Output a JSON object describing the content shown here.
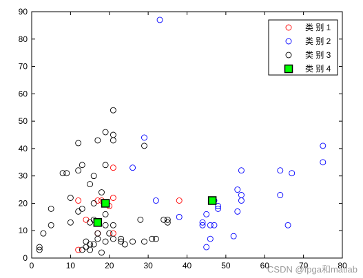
{
  "chart_data": {
    "type": "scatter",
    "title": "",
    "xlabel": "",
    "ylabel": "",
    "xlim": [
      0,
      80
    ],
    "ylim": [
      0,
      90
    ],
    "xticks": [
      0,
      10,
      20,
      30,
      40,
      50,
      60,
      70,
      80
    ],
    "yticks": [
      0,
      10,
      20,
      30,
      40,
      50,
      60,
      70,
      80,
      90
    ],
    "xtick_labels": [
      "0",
      "10",
      "20",
      "30",
      "40",
      "50",
      "60",
      "70",
      "80"
    ],
    "ytick_labels": [
      "0",
      "10",
      "20",
      "30",
      "40",
      "50",
      "60",
      "70",
      "80",
      "90"
    ],
    "grid": false,
    "legend_position": "top-right",
    "series": [
      {
        "name": "类 别 1",
        "color": "#ff0000",
        "marker": "open-circle",
        "points": [
          [
            12,
            21
          ],
          [
            14,
            14
          ],
          [
            12,
            3
          ],
          [
            17,
            21
          ],
          [
            18,
            21
          ],
          [
            21,
            33
          ],
          [
            21,
            22
          ],
          [
            20,
            19
          ],
          [
            21,
            9
          ],
          [
            38,
            21
          ],
          [
            17,
            9
          ]
        ]
      },
      {
        "name": "类 别 2",
        "color": "#0000ff",
        "marker": "open-circle",
        "points": [
          [
            33,
            87
          ],
          [
            29,
            44
          ],
          [
            26,
            33
          ],
          [
            32,
            21
          ],
          [
            38,
            15
          ],
          [
            44,
            13
          ],
          [
            44,
            12
          ],
          [
            45,
            16
          ],
          [
            45,
            4
          ],
          [
            46,
            7
          ],
          [
            46,
            12
          ],
          [
            47,
            12
          ],
          [
            48,
            19
          ],
          [
            48,
            18
          ],
          [
            47,
            21
          ],
          [
            52,
            8
          ],
          [
            53,
            25
          ],
          [
            53,
            17
          ],
          [
            54,
            23
          ],
          [
            54,
            21
          ],
          [
            54,
            32
          ],
          [
            64,
            32
          ],
          [
            64,
            23
          ],
          [
            66,
            12
          ],
          [
            67,
            31
          ],
          [
            75,
            41
          ],
          [
            75,
            35
          ]
        ]
      },
      {
        "name": "类 别 3",
        "color": "#000000",
        "marker": "open-circle",
        "points": [
          [
            21,
            54
          ],
          [
            19,
            46
          ],
          [
            21,
            45
          ],
          [
            21,
            43
          ],
          [
            17,
            43
          ],
          [
            12,
            42
          ],
          [
            29,
            41
          ],
          [
            19,
            34
          ],
          [
            13,
            34
          ],
          [
            12,
            32
          ],
          [
            8,
            31
          ],
          [
            9,
            31
          ],
          [
            16,
            30
          ],
          [
            15,
            27
          ],
          [
            18,
            24
          ],
          [
            10,
            22
          ],
          [
            5,
            18
          ],
          [
            13,
            18
          ],
          [
            12,
            17
          ],
          [
            16,
            20
          ],
          [
            19,
            16
          ],
          [
            16,
            14
          ],
          [
            28,
            14
          ],
          [
            34,
            14
          ],
          [
            35,
            14
          ],
          [
            35,
            13
          ],
          [
            15,
            13
          ],
          [
            10,
            13
          ],
          [
            5,
            12
          ],
          [
            19,
            12
          ],
          [
            21,
            12
          ],
          [
            3,
            9
          ],
          [
            17,
            9
          ],
          [
            20,
            9
          ],
          [
            17,
            7
          ],
          [
            21,
            7
          ],
          [
            19,
            6
          ],
          [
            23,
            7
          ],
          [
            23,
            6
          ],
          [
            24,
            5
          ],
          [
            26,
            6
          ],
          [
            29,
            6
          ],
          [
            31,
            7
          ],
          [
            32,
            7
          ],
          [
            14,
            6
          ],
          [
            15,
            5
          ],
          [
            16,
            5
          ],
          [
            14,
            4
          ],
          [
            2,
            4
          ],
          [
            2,
            3
          ],
          [
            13,
            3
          ],
          [
            18,
            2
          ],
          [
            15,
            3
          ]
        ]
      },
      {
        "name": "类 别 4",
        "color": "#00ff00",
        "marker": "filled-square",
        "points": [
          [
            19,
            20
          ],
          [
            17,
            13
          ],
          [
            46.5,
            21
          ]
        ]
      }
    ]
  },
  "watermark": "CSDN @fpga和matlab"
}
